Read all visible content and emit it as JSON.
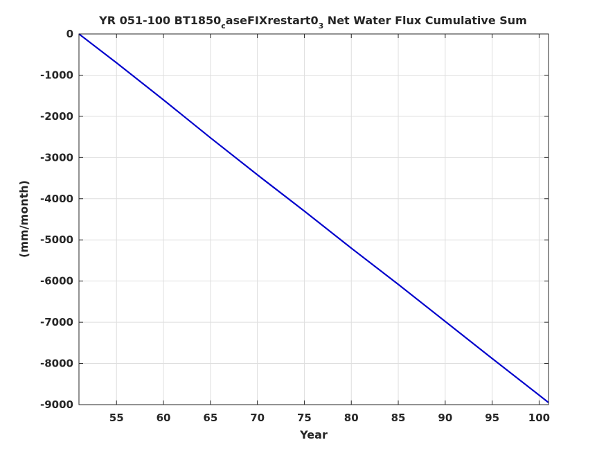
{
  "chart_data": {
    "type": "line",
    "title": {
      "part1": "YR 051-100 BT1850",
      "sub1": "c",
      "part2": "aseFIXrestart0",
      "sub2": "3",
      "part3": " Net Water Flux Cumulative Sum"
    },
    "xlabel": "Year",
    "ylabel": "(mm/month)",
    "xlim": [
      51,
      101
    ],
    "ylim": [
      -9000,
      0
    ],
    "xticks": [
      55,
      60,
      65,
      70,
      75,
      80,
      85,
      90,
      95,
      100
    ],
    "yticks": [
      0,
      -1000,
      -2000,
      -3000,
      -4000,
      -5000,
      -6000,
      -7000,
      -8000,
      -9000
    ],
    "grid": true,
    "series": [
      {
        "color": "#0000cc",
        "x": [
          51,
          55,
          60,
          65,
          70,
          75,
          80,
          85,
          90,
          95,
          100,
          101
        ],
        "y": [
          0,
          -700,
          -1600,
          -2520,
          -3420,
          -4300,
          -5200,
          -6080,
          -6980,
          -7880,
          -8770,
          -8950
        ]
      }
    ]
  }
}
